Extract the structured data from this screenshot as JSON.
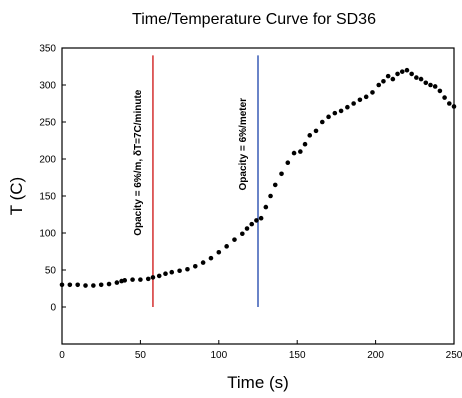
{
  "chart_data": {
    "type": "scatter",
    "title": "Time/Temperature Curve for SD36",
    "xlabel": "Time (s)",
    "ylabel": "T (C)",
    "xlim": [
      0,
      250
    ],
    "ylim": [
      -50,
      350
    ],
    "x_ticks": [
      "0",
      "50",
      "100",
      "150",
      "200",
      "250"
    ],
    "y_ticks": [
      "0",
      "50",
      "100",
      "150",
      "200",
      "250",
      "300",
      "350"
    ],
    "grid": false,
    "legend": "none",
    "marker_color": "#000000",
    "vlines": [
      {
        "x": 58,
        "color": "#d02020",
        "label": "Opacity = 6%/m, δT=7C/minute"
      },
      {
        "x": 125,
        "color": "#2b4fb0",
        "label": "Opacity = 6%/meter"
      }
    ],
    "points": {
      "x": [
        0,
        5,
        10,
        15,
        20,
        25,
        30,
        35,
        38,
        40,
        45,
        50,
        55,
        58,
        62,
        66,
        70,
        75,
        80,
        85,
        90,
        95,
        100,
        105,
        110,
        115,
        118,
        121,
        124,
        127,
        130,
        133,
        136,
        140,
        144,
        148,
        152,
        155,
        158,
        162,
        166,
        170,
        174,
        178,
        182,
        186,
        190,
        194,
        198,
        202,
        205,
        208,
        211,
        214,
        217,
        220,
        223,
        226,
        229,
        232,
        235,
        238,
        241,
        244,
        247,
        250
      ],
      "y": [
        30,
        30,
        30,
        29,
        29,
        30,
        31,
        33,
        35,
        36,
        37,
        37,
        38,
        40,
        42,
        45,
        47,
        49,
        51,
        55,
        60,
        66,
        74,
        82,
        91,
        99,
        106,
        112,
        117,
        120,
        135,
        150,
        165,
        180,
        195,
        208,
        210,
        220,
        232,
        238,
        250,
        257,
        262,
        265,
        270,
        275,
        280,
        284,
        290,
        300,
        305,
        312,
        308,
        315,
        318,
        320,
        315,
        310,
        308,
        303,
        300,
        298,
        292,
        283,
        275,
        271
      ]
    }
  }
}
